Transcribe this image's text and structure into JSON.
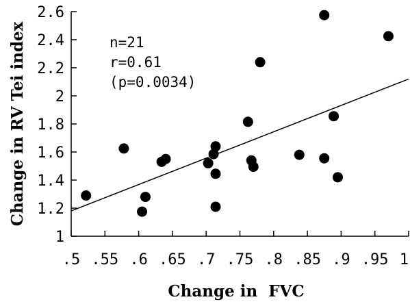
{
  "chart_data": {
    "type": "scatter",
    "title": "",
    "xlabel": "Change in  FVC",
    "ylabel": "Change in RV Tei index",
    "xlim": [
      0.5,
      1.0
    ],
    "ylim": [
      1.0,
      2.6
    ],
    "x_tick_labels": [
      ".5",
      ".55",
      ".6",
      ".65",
      ".7",
      ".75",
      ".8",
      ".85",
      ".9",
      ".95",
      "1"
    ],
    "x_tick_values": [
      0.5,
      0.55,
      0.6,
      0.65,
      0.7,
      0.75,
      0.8,
      0.85,
      0.9,
      0.95,
      1.0
    ],
    "y_tick_labels": [
      "1",
      "1.2",
      "1.4",
      "1.6",
      "1.8",
      "2",
      "2.2",
      "2.4",
      "2.6"
    ],
    "y_tick_values": [
      1.0,
      1.2,
      1.4,
      1.6,
      1.8,
      2.0,
      2.2,
      2.4,
      2.6
    ],
    "grid": false,
    "annotations": [
      "n=21",
      "r=0.61",
      "(p=0.0034)"
    ],
    "points": [
      {
        "x": 0.522,
        "y": 1.29
      },
      {
        "x": 0.578,
        "y": 1.625
      },
      {
        "x": 0.605,
        "y": 1.175
      },
      {
        "x": 0.61,
        "y": 1.28
      },
      {
        "x": 0.634,
        "y": 1.53
      },
      {
        "x": 0.64,
        "y": 1.55
      },
      {
        "x": 0.703,
        "y": 1.52
      },
      {
        "x": 0.711,
        "y": 1.585
      },
      {
        "x": 0.714,
        "y": 1.64
      },
      {
        "x": 0.714,
        "y": 1.445
      },
      {
        "x": 0.714,
        "y": 1.21
      },
      {
        "x": 0.762,
        "y": 1.815
      },
      {
        "x": 0.767,
        "y": 1.54
      },
      {
        "x": 0.77,
        "y": 1.495
      },
      {
        "x": 0.78,
        "y": 2.24
      },
      {
        "x": 0.838,
        "y": 1.58
      },
      {
        "x": 0.875,
        "y": 2.575
      },
      {
        "x": 0.875,
        "y": 1.555
      },
      {
        "x": 0.889,
        "y": 1.855
      },
      {
        "x": 0.895,
        "y": 1.42
      },
      {
        "x": 0.97,
        "y": 2.425
      }
    ],
    "regression_line": {
      "x": [
        0.5,
        1.0
      ],
      "y": [
        1.18,
        2.12
      ]
    },
    "marker_color": "#000000"
  }
}
